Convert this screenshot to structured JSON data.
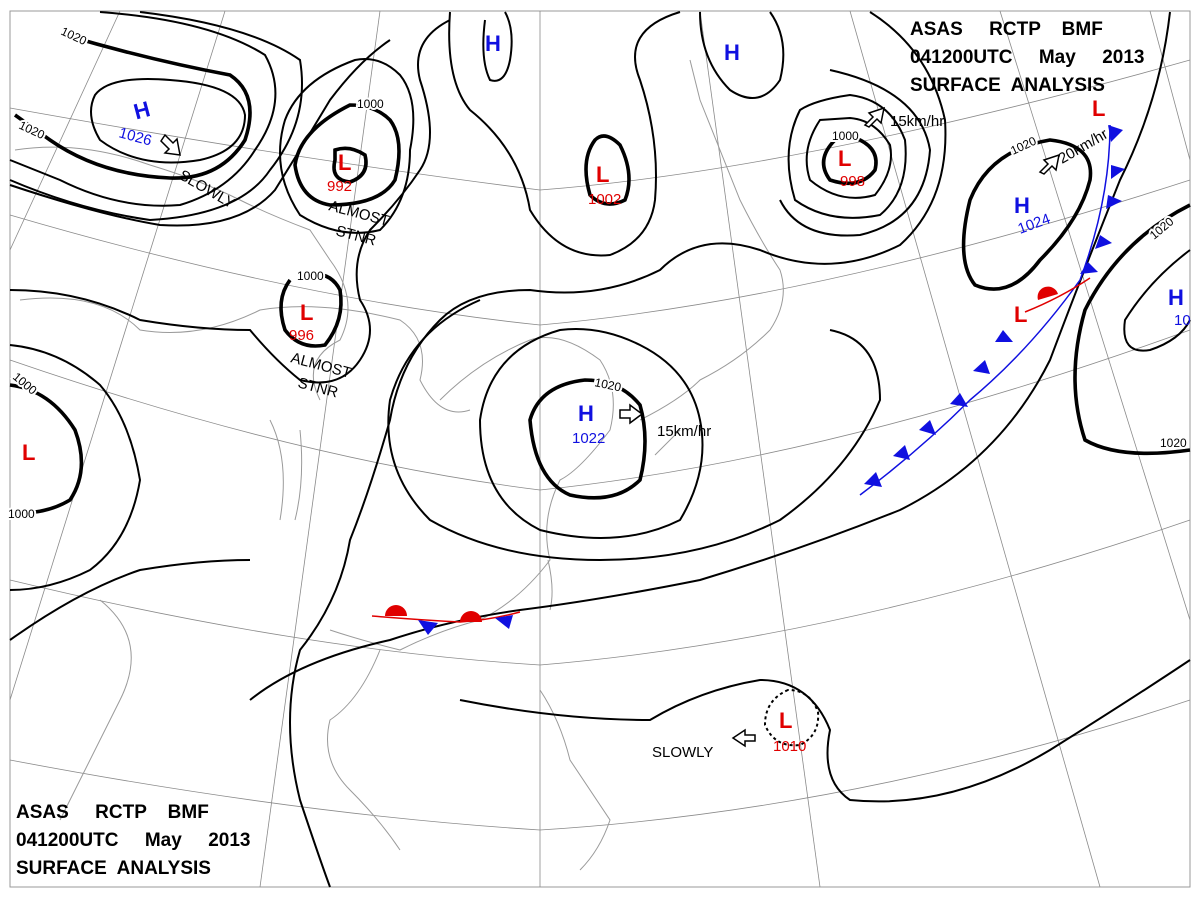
{
  "header_top": {
    "line1": "ASAS     RCTP    BMF",
    "line2": "041200UTC     May     2013",
    "line3": "SURFACE  ANALYSIS"
  },
  "header_bottom": {
    "line1": "ASAS     RCTP    BMF",
    "line2": "041200UTC     May     2013",
    "line3": "SURFACE  ANALYSIS"
  },
  "centers": [
    {
      "type": "H",
      "value": "1026"
    },
    {
      "type": "L",
      "value": "992"
    },
    {
      "type": "L",
      "value": "996"
    },
    {
      "type": "L",
      "value": ""
    },
    {
      "type": "H",
      "value": ""
    },
    {
      "type": "H",
      "value": ""
    },
    {
      "type": "L",
      "value": "1002"
    },
    {
      "type": "L",
      "value": "998"
    },
    {
      "type": "H",
      "value": "1024"
    },
    {
      "type": "H",
      "value": "10"
    },
    {
      "type": "H",
      "value": "1022"
    },
    {
      "type": "L",
      "value": "1010"
    },
    {
      "type": "L",
      "value": ""
    },
    {
      "type": "L",
      "value": ""
    }
  ],
  "isobar_labels": [
    "1020",
    "1020",
    "1000",
    "1000",
    "1000",
    "1000",
    "1000",
    "1020",
    "1020",
    "1020",
    "1020"
  ],
  "motion_labels": {
    "h1026": "SLOWLY",
    "l992_1": "ALMOST",
    "l992_2": "STNR",
    "l996_1": "ALMOST",
    "l996_2": "STNR",
    "h1022": "15km/hr",
    "l998": "15km/hr",
    "h1024": "20km/hr",
    "l1010": "SLOWLY"
  },
  "colors": {
    "high": "#1010e0",
    "low": "#e00000",
    "cold_front": "#1010e0",
    "warm_front": "#e00000"
  }
}
